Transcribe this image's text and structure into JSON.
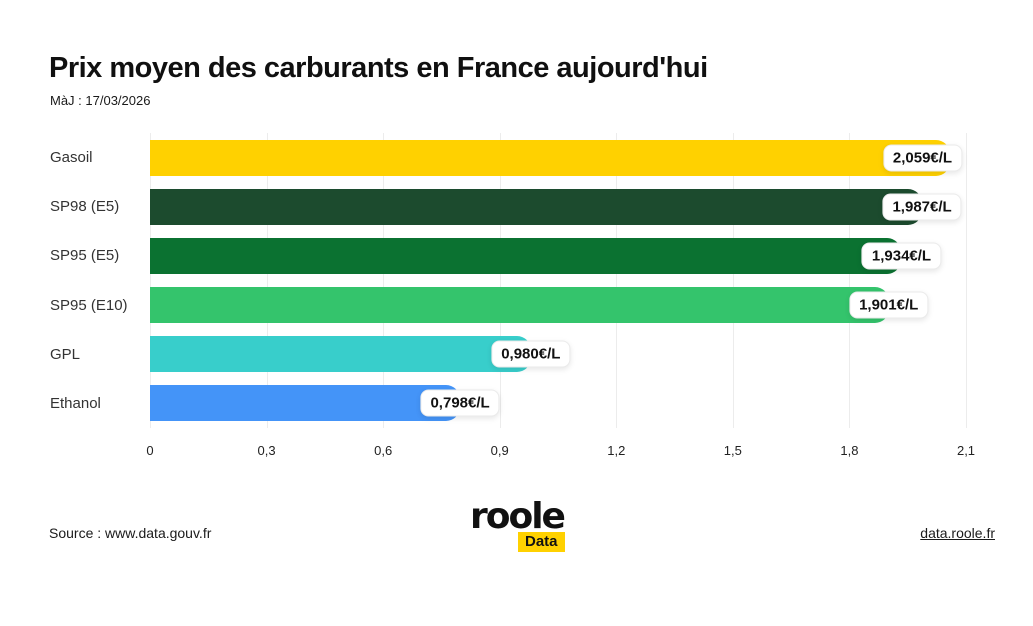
{
  "header": {
    "title": "Prix moyen des carburants en France aujourd'hui",
    "updated": "MàJ : 17/03/2026"
  },
  "chart_data": {
    "type": "bar",
    "orientation": "horizontal",
    "title": "Prix moyen des carburants en France aujourd'hui",
    "categories": [
      "Gasoil",
      "SP98 (E5)",
      "SP95 (E5)",
      "SP95 (E10)",
      "GPL",
      "Ethanol"
    ],
    "values": [
      2.059,
      1.987,
      1.934,
      1.901,
      0.98,
      0.798
    ],
    "value_labels": [
      "2,059€/L",
      "1,987€/L",
      "1,934€/L",
      "1,901€/L",
      "0,980€/L",
      "0,798€/L"
    ],
    "bar_colors": [
      "#FFD100",
      "#1C4B2E",
      "#0B7231",
      "#34C46C",
      "#38CECB",
      "#4494F8"
    ],
    "x_ticks": [
      "0",
      "0,3",
      "0,6",
      "0,9",
      "1,2",
      "1,5",
      "1,8",
      "2,1"
    ],
    "x_tick_values": [
      0,
      0.3,
      0.6,
      0.9,
      1.2,
      1.5,
      1.8,
      2.1
    ],
    "xlim": [
      0,
      2.1
    ],
    "grid": true,
    "legend": "none",
    "unit": "€/L"
  },
  "footer": {
    "source": "Source : www.data.gouv.fr",
    "logo_text": "roole",
    "logo_badge": "Data",
    "link": "data.roole.fr"
  },
  "colors": {
    "accent_yellow": "#FFD100",
    "gridline": "#ececec",
    "text_dark": "#111111"
  }
}
